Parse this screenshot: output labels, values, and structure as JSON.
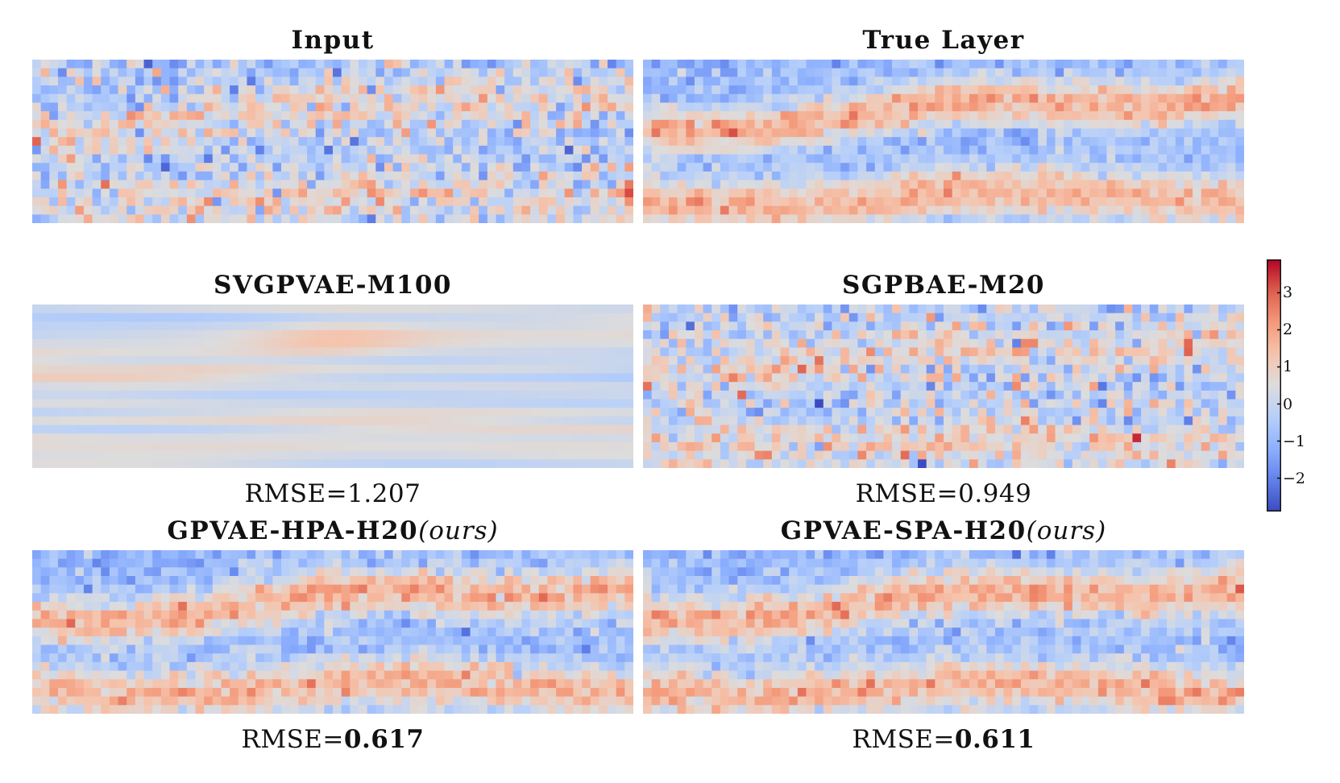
{
  "chart_data": [
    {
      "type": "heatmap",
      "title": "Input",
      "rmse": null,
      "pattern": "noisy-layer",
      "grid": [
        70,
        19
      ],
      "color_scale": "coolwarm",
      "vmin": -2.9,
      "vmax": 3.9
    },
    {
      "type": "heatmap",
      "title": "True Layer",
      "rmse": null,
      "pattern": "true-layer",
      "grid": [
        70,
        19
      ],
      "color_scale": "coolwarm",
      "vmin": -2.9,
      "vmax": 3.9
    },
    {
      "type": "heatmap",
      "title": "SVGPVAE-M100",
      "rmse": {
        "prefix": "RMSE=",
        "value": "1.207",
        "best": false
      },
      "pattern": "smooth-streaks",
      "grid": [
        70,
        19
      ],
      "color_scale": "coolwarm",
      "vmin": -2.9,
      "vmax": 3.9
    },
    {
      "type": "heatmap",
      "title": "SGPBAE-M20",
      "rmse": {
        "prefix": "RMSE=",
        "value": "0.949",
        "best": false
      },
      "pattern": "noisy-weak",
      "grid": [
        70,
        19
      ],
      "color_scale": "coolwarm",
      "vmin": -2.9,
      "vmax": 3.9
    },
    {
      "type": "heatmap",
      "title": "GPVAE-HPA-H20",
      "title_suffix": "(ours)",
      "rmse": {
        "prefix": "RMSE=",
        "value": "0.617",
        "best": true
      },
      "pattern": "recovered-layer",
      "grid": [
        70,
        19
      ],
      "color_scale": "coolwarm",
      "vmin": -2.9,
      "vmax": 3.9
    },
    {
      "type": "heatmap",
      "title": "GPVAE-SPA-H20",
      "title_suffix": "(ours)",
      "rmse": {
        "prefix": "RMSE=",
        "value": "0.611",
        "best": true
      },
      "pattern": "recovered-layer",
      "grid": [
        70,
        19
      ],
      "color_scale": "coolwarm",
      "vmin": -2.9,
      "vmax": 3.9
    }
  ],
  "colorbar": {
    "ticks": [
      {
        "value": 3,
        "label": "3"
      },
      {
        "value": 2,
        "label": "2"
      },
      {
        "value": 1,
        "label": "1"
      },
      {
        "value": 0,
        "label": "0"
      },
      {
        "value": -1,
        "label": "−1"
      },
      {
        "value": -2,
        "label": "−2"
      }
    ],
    "vmin": -2.9,
    "vmax": 3.9,
    "colors": {
      "low": "#3b4cc0",
      "mid": "#dddcdc",
      "high": "#b40426"
    }
  }
}
